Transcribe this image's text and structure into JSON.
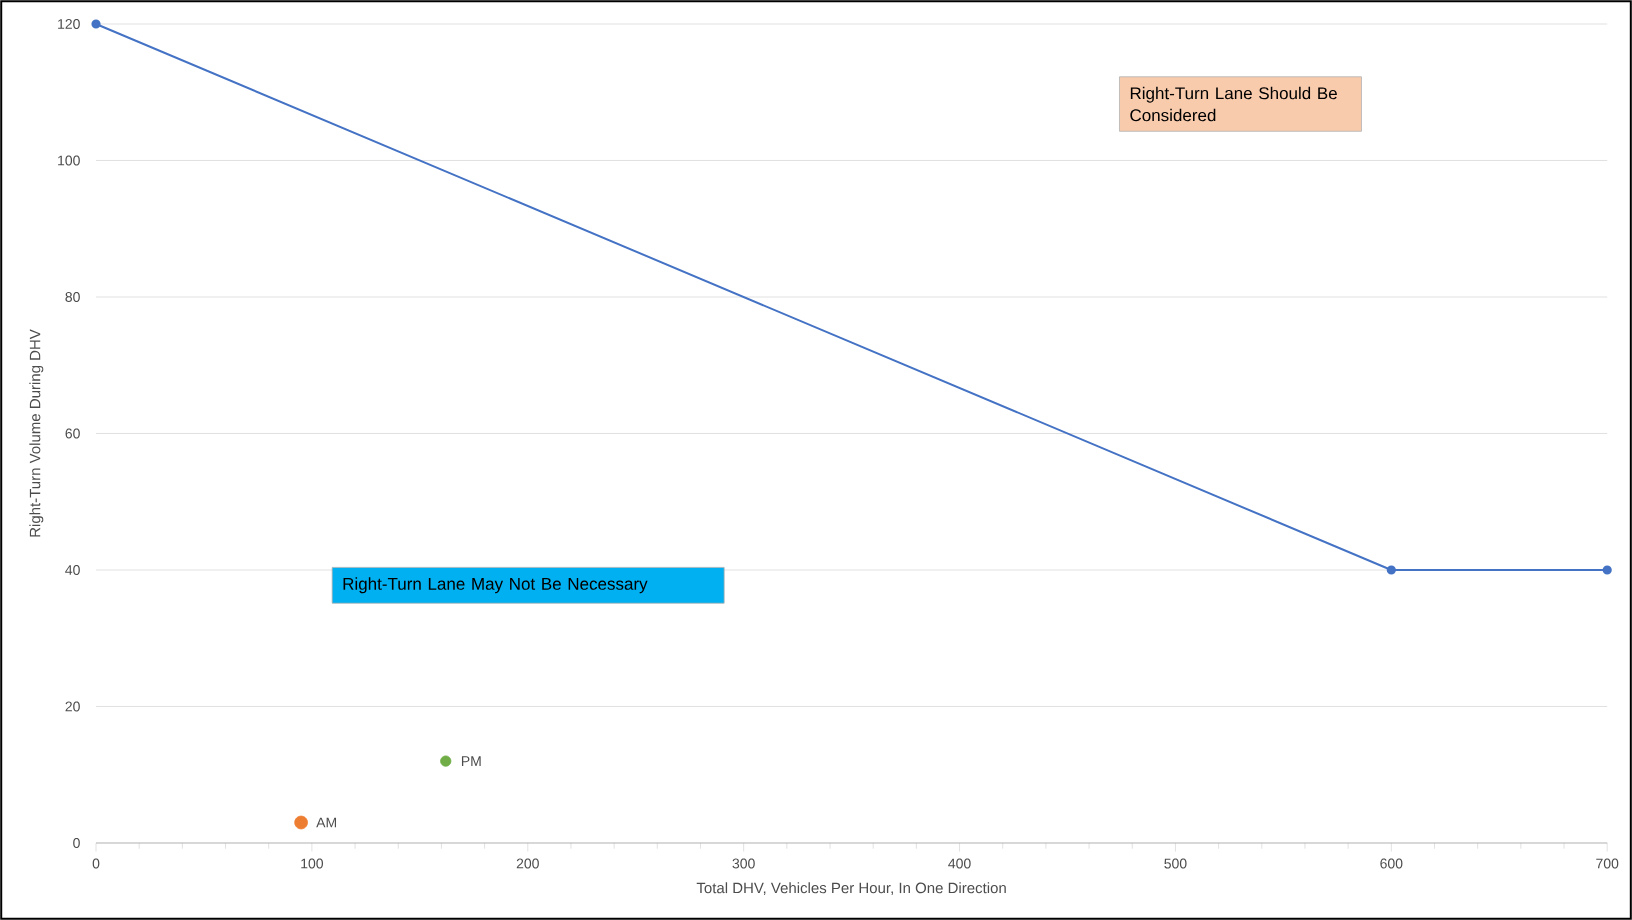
{
  "chart_data": {
    "type": "line",
    "xlabel": "Total DHV, Vehicles Per Hour, In One Direction",
    "ylabel": "Right-Turn Volume During DHV",
    "xlim": [
      0,
      700
    ],
    "ylim": [
      0,
      120
    ],
    "xticks": [
      0,
      100,
      200,
      300,
      400,
      500,
      600,
      700
    ],
    "yticks": [
      0,
      20,
      40,
      60,
      80,
      100,
      120
    ],
    "grid": "y",
    "series": [
      {
        "color": "#4472c4",
        "marker": "circle",
        "x": [
          0,
          600,
          700
        ],
        "values": [
          120,
          40,
          40
        ]
      },
      {
        "type": "scatter",
        "name": "AM",
        "color": "#ed7d31",
        "marker": "circle",
        "x": [
          95
        ],
        "values": [
          3
        ]
      },
      {
        "type": "scatter",
        "name": "PM",
        "color": "#70ad47",
        "marker": "circle",
        "x": [
          162
        ],
        "values": [
          12
        ]
      }
    ],
    "annotations": [
      "Right-Turn Lane Should Be Considered",
      "Right-Turn Lane May Not Be Necessary"
    ]
  }
}
